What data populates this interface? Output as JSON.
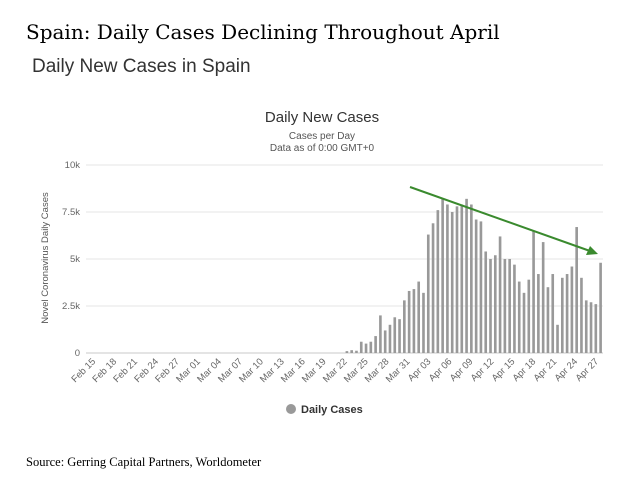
{
  "page": {
    "headline": "Spain: Daily Cases Declining Throughout April",
    "subheadline": "Daily New Cases in Spain",
    "source": "Source: Gerring Capital Partners, Worldometer"
  },
  "chart_data": {
    "type": "bar",
    "title": "Daily New Cases",
    "subtitle_lines": [
      "Cases per Day",
      "Data as of 0:00 GMT+0"
    ],
    "ylabel": "Novel Coronavirus Daily Cases",
    "ylim": [
      0,
      10000
    ],
    "yticks": [
      0,
      2500,
      5000,
      7500,
      10000
    ],
    "ytick_labels": [
      "0",
      "2.5k",
      "5k",
      "7.5k",
      "10k"
    ],
    "xtick_labels": [
      "Feb 15",
      "Feb 18",
      "Feb 21",
      "Feb 24",
      "Feb 27",
      "Mar 01",
      "Mar 04",
      "Mar 07",
      "Mar 10",
      "Mar 13",
      "Mar 16",
      "Mar 19",
      "Mar 22",
      "Mar 25",
      "Mar 28",
      "Mar 31",
      "Apr 03",
      "Apr 06",
      "Apr 09",
      "Apr 12",
      "Apr 15",
      "Apr 18",
      "Apr 21",
      "Apr 24",
      "Apr 27"
    ],
    "grid": true,
    "bar_color": "#999999",
    "series": [
      {
        "name": "Daily Cases",
        "values": [
          0,
          0,
          0,
          0,
          0,
          0,
          0,
          0,
          0,
          0,
          0,
          0,
          0,
          0,
          0,
          0,
          0,
          0,
          0,
          0,
          0,
          0,
          0,
          0,
          0,
          0,
          0,
          0,
          0,
          0,
          0,
          0,
          0,
          0,
          0,
          0,
          0,
          0,
          0,
          0,
          0,
          0,
          0,
          0,
          0,
          0,
          0,
          0,
          0,
          0,
          0,
          0,
          0,
          0,
          100,
          150,
          120,
          600,
          500,
          600,
          900,
          2000,
          1200,
          1500,
          1900,
          1800,
          2800,
          3300,
          3400,
          3800,
          3200,
          6300,
          6900,
          7600,
          8200,
          7900,
          7500,
          7800,
          7900,
          8200,
          7900,
          7100,
          7000,
          5400,
          5000,
          5200,
          6200,
          5000,
          5000,
          4700,
          3800,
          3200,
          3900,
          6500,
          4200,
          5900,
          3500,
          4200,
          1500,
          4000,
          4200,
          4600,
          6700,
          4000,
          2800,
          2700,
          2600,
          4800
        ]
      }
    ],
    "trend_arrow_color": "#3a8a2e",
    "legend_position": "bottom"
  }
}
